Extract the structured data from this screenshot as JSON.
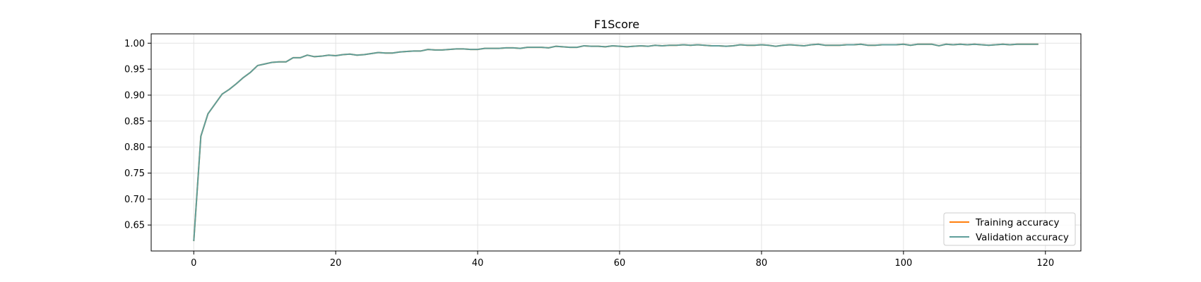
{
  "chart_data": {
    "type": "line",
    "title": "F1Score",
    "xlabel": "",
    "ylabel": "",
    "xlim": [
      -6,
      125
    ],
    "ylim": [
      0.6,
      1.018
    ],
    "grid": true,
    "legend_position": "bottom-right",
    "x_ticks": [
      0,
      20,
      40,
      60,
      80,
      100,
      120
    ],
    "y_ticks": [
      0.65,
      0.7,
      0.75,
      0.8,
      0.85,
      0.9,
      0.95,
      1.0
    ],
    "x_tick_labels": [
      "0",
      "20",
      "40",
      "60",
      "80",
      "100",
      "120"
    ],
    "y_tick_labels": [
      "0.65",
      "0.70",
      "0.75",
      "0.80",
      "0.85",
      "0.90",
      "0.95",
      "1.00"
    ],
    "series": [
      {
        "name": "Training accuracy",
        "color": "#ff7f0e",
        "values": [
          0.619,
          0.821,
          0.864,
          0.883,
          0.902,
          0.911,
          0.922,
          0.934,
          0.944,
          0.957,
          0.96,
          0.963,
          0.964,
          0.964,
          0.972,
          0.972,
          0.977,
          0.974,
          0.975,
          0.977,
          0.976,
          0.978,
          0.979,
          0.977,
          0.978,
          0.98,
          0.982,
          0.981,
          0.981,
          0.983,
          0.984,
          0.985,
          0.985,
          0.988,
          0.987,
          0.987,
          0.988,
          0.989,
          0.989,
          0.988,
          0.988,
          0.99,
          0.99,
          0.99,
          0.991,
          0.991,
          0.99,
          0.992,
          0.992,
          0.992,
          0.991,
          0.994,
          0.993,
          0.992,
          0.992,
          0.995,
          0.994,
          0.994,
          0.993,
          0.995,
          0.994,
          0.993,
          0.994,
          0.995,
          0.994,
          0.996,
          0.995,
          0.996,
          0.996,
          0.997,
          0.996,
          0.997,
          0.996,
          0.995,
          0.995,
          0.994,
          0.995,
          0.997,
          0.996,
          0.996,
          0.997,
          0.996,
          0.994,
          0.996,
          0.997,
          0.996,
          0.995,
          0.997,
          0.998,
          0.996,
          0.996,
          0.996,
          0.997,
          0.997,
          0.998,
          0.996,
          0.996,
          0.997,
          0.997,
          0.997,
          0.998,
          0.996,
          0.998,
          0.998,
          0.998,
          0.995,
          0.998,
          0.997,
          0.998,
          0.997,
          0.998,
          0.997,
          0.996,
          0.997,
          0.998,
          0.997,
          0.998,
          0.998,
          0.998,
          0.998
        ]
      },
      {
        "name": "Validation accuracy",
        "color": "#5f9e9a",
        "values": [
          0.619,
          0.821,
          0.864,
          0.883,
          0.902,
          0.911,
          0.922,
          0.934,
          0.944,
          0.957,
          0.96,
          0.963,
          0.964,
          0.964,
          0.972,
          0.972,
          0.977,
          0.974,
          0.975,
          0.977,
          0.976,
          0.978,
          0.979,
          0.977,
          0.978,
          0.98,
          0.982,
          0.981,
          0.981,
          0.983,
          0.984,
          0.985,
          0.985,
          0.988,
          0.987,
          0.987,
          0.988,
          0.989,
          0.989,
          0.988,
          0.988,
          0.99,
          0.99,
          0.99,
          0.991,
          0.991,
          0.99,
          0.992,
          0.992,
          0.992,
          0.991,
          0.994,
          0.993,
          0.992,
          0.992,
          0.995,
          0.994,
          0.994,
          0.993,
          0.995,
          0.994,
          0.993,
          0.994,
          0.995,
          0.994,
          0.996,
          0.995,
          0.996,
          0.996,
          0.997,
          0.996,
          0.997,
          0.996,
          0.995,
          0.995,
          0.994,
          0.995,
          0.997,
          0.996,
          0.996,
          0.997,
          0.996,
          0.994,
          0.996,
          0.997,
          0.996,
          0.995,
          0.997,
          0.998,
          0.996,
          0.996,
          0.996,
          0.997,
          0.997,
          0.998,
          0.996,
          0.996,
          0.997,
          0.997,
          0.997,
          0.998,
          0.996,
          0.998,
          0.998,
          0.998,
          0.995,
          0.998,
          0.997,
          0.998,
          0.997,
          0.998,
          0.997,
          0.996,
          0.997,
          0.998,
          0.997,
          0.998,
          0.998,
          0.998,
          0.998
        ]
      }
    ]
  }
}
